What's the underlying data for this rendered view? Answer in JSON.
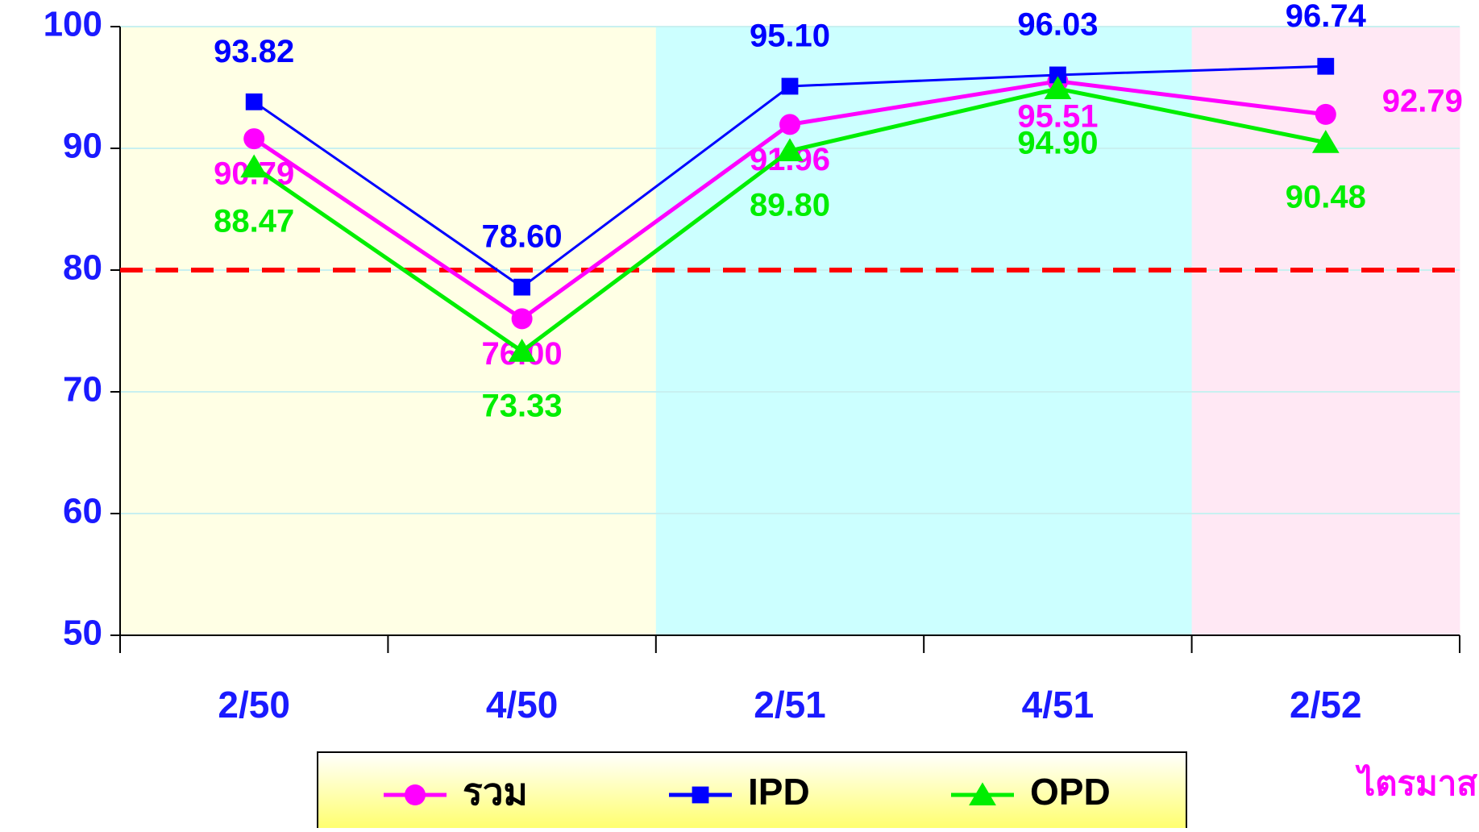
{
  "chart_data": {
    "type": "line",
    "categories": [
      "2/50",
      "4/50",
      "2/51",
      "4/51",
      "2/52"
    ],
    "x_label": "ไตรมาส",
    "series": [
      {
        "name": "รวม",
        "color": "#ff00ff",
        "marker": "circle",
        "values": [
          90.79,
          76.0,
          91.96,
          95.51,
          92.79
        ],
        "value_labels": [
          "90.79",
          "76.00",
          "91.96",
          "95.51",
          "92.79"
        ]
      },
      {
        "name": "IPD",
        "color": "#0000ff",
        "marker": "square",
        "values": [
          93.82,
          78.6,
          95.1,
          96.03,
          96.74
        ],
        "value_labels": [
          "93.82",
          "78.60",
          "95.10",
          "96.03",
          "96.74"
        ]
      },
      {
        "name": "OPD",
        "color": "#00ee00",
        "marker": "triangle",
        "values": [
          88.47,
          73.33,
          89.8,
          94.9,
          90.48
        ],
        "value_labels": [
          "88.47",
          "73.33",
          "89.80",
          "94.90",
          "90.48"
        ]
      }
    ],
    "ylim": [
      50,
      100
    ],
    "yticks": [
      50,
      60,
      70,
      80,
      90,
      100
    ],
    "grid": true,
    "reference_line": {
      "value": 80,
      "color": "#ff0000"
    },
    "band_colors": [
      "#ffffe5",
      "#ffffe5",
      "#ccffff",
      "#ccffff",
      "#ffe8f4"
    ],
    "legend": "bottom"
  }
}
